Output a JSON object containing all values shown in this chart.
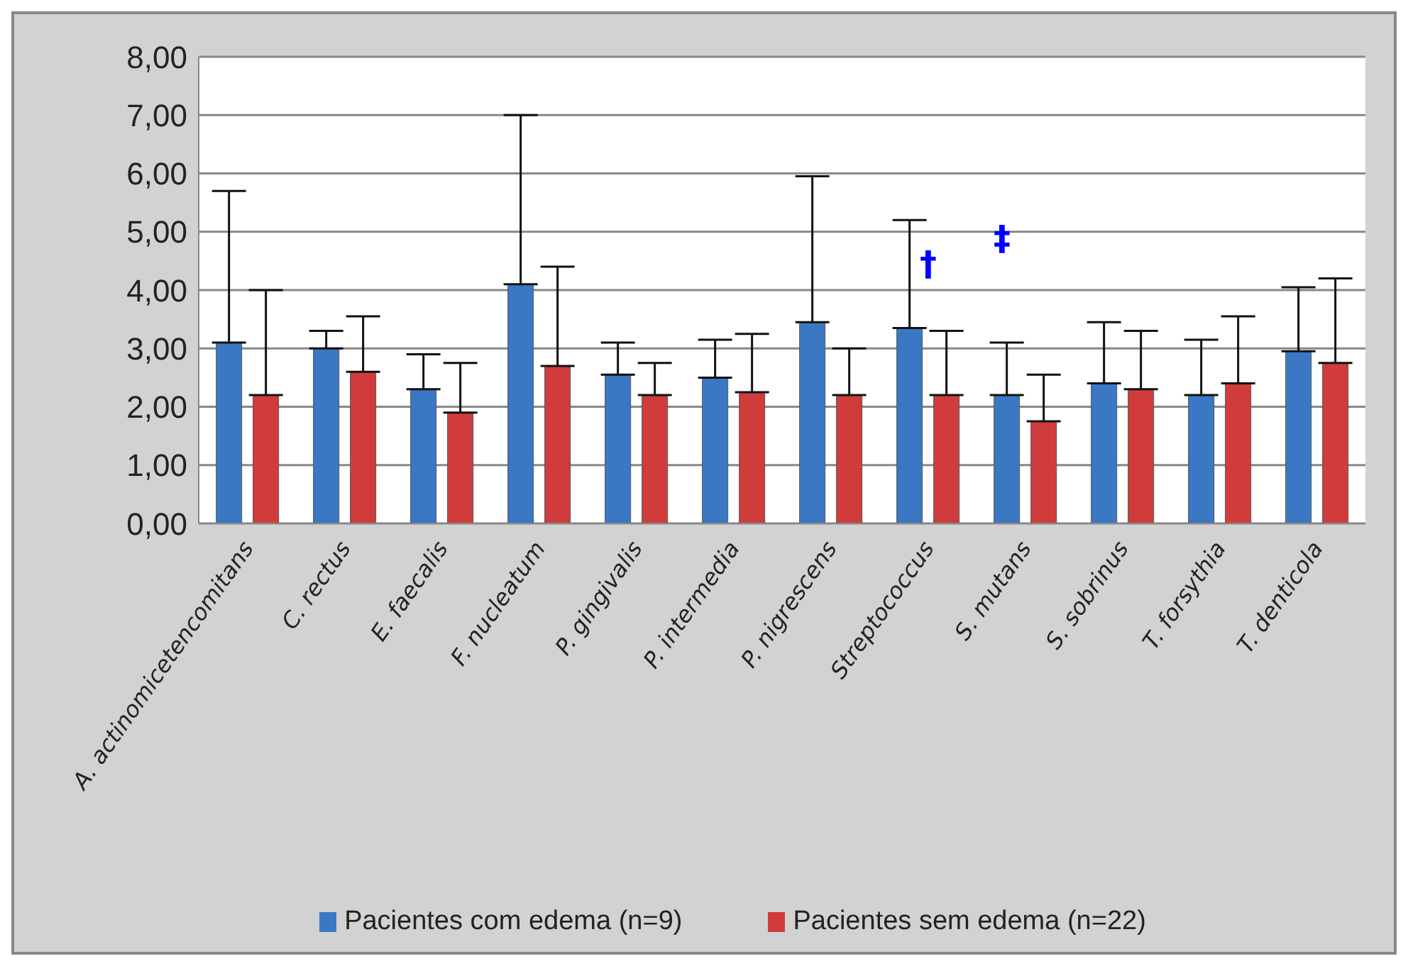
{
  "chart_data": {
    "type": "bar",
    "categories": [
      "A. actinomicetencomitans",
      "C. rectus",
      "E. faecalis",
      "F. nucleatum",
      "P. gingivalis",
      "P. intermedia",
      "P. nigrescens",
      "Streptococcus",
      "S. mutans",
      "S. sobrinus",
      "T. forsythia",
      "T. denticola"
    ],
    "series": [
      {
        "name": "Pacientes com edema (n=9)",
        "color": "#3a78c4",
        "values": [
          3.1,
          3.0,
          2.3,
          4.1,
          2.55,
          2.5,
          3.45,
          3.35,
          2.2,
          2.4,
          2.2,
          2.95
        ],
        "errors": [
          [
            3.1,
            5.7
          ],
          [
            3.0,
            3.3
          ],
          [
            2.3,
            2.9
          ],
          [
            4.1,
            7.0
          ],
          [
            2.55,
            3.1
          ],
          [
            2.5,
            3.15
          ],
          [
            3.45,
            5.95
          ],
          [
            3.35,
            5.2
          ],
          [
            2.2,
            3.1
          ],
          [
            2.4,
            3.45
          ],
          [
            2.2,
            3.15
          ],
          [
            2.95,
            4.05
          ]
        ]
      },
      {
        "name": "Pacientes sem edema (n=22)",
        "color": "#d03c3c",
        "values": [
          2.2,
          2.6,
          1.9,
          2.7,
          2.2,
          2.25,
          2.2,
          2.2,
          1.75,
          2.3,
          2.4,
          2.75
        ],
        "errors": [
          [
            2.2,
            4.0
          ],
          [
            2.6,
            3.55
          ],
          [
            1.9,
            2.75
          ],
          [
            2.7,
            4.4
          ],
          [
            2.2,
            2.75
          ],
          [
            2.25,
            3.25
          ],
          [
            2.2,
            3.0
          ],
          [
            2.2,
            3.3
          ],
          [
            1.75,
            2.55
          ],
          [
            2.3,
            3.3
          ],
          [
            2.4,
            3.55
          ],
          [
            2.75,
            4.2
          ]
        ]
      }
    ],
    "ylim": [
      0,
      8
    ],
    "yticks": [
      {
        "value": 0,
        "label": "0,00"
      },
      {
        "value": 1,
        "label": "1,00"
      },
      {
        "value": 2,
        "label": "2,00"
      },
      {
        "value": 3,
        "label": "3,00"
      },
      {
        "value": 4,
        "label": "4,00"
      },
      {
        "value": 5,
        "label": "5,00"
      },
      {
        "value": 6,
        "label": "6,00"
      },
      {
        "value": 7,
        "label": "7,00"
      },
      {
        "value": 8,
        "label": "8,00"
      }
    ],
    "annotations": [
      "†",
      "‡"
    ],
    "grid": "y",
    "legend": "bottom"
  }
}
